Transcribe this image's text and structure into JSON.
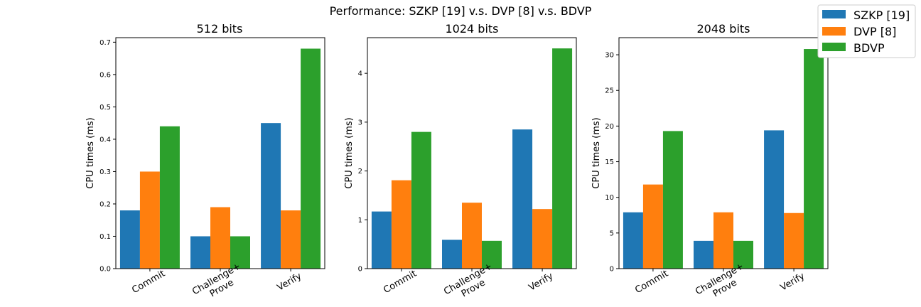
{
  "figure": {
    "title": "Performance: SZKP [19] v.s. DVP [8] v.s. BDVP"
  },
  "legend": {
    "placement": "top-right",
    "entries": [
      {
        "name": "SZKP [19]",
        "color": "#1f77b4"
      },
      {
        "name": "DVP [8]",
        "color": "#ff7f0e"
      },
      {
        "name": "BDVP",
        "color": "#2ca02c"
      }
    ]
  },
  "chart_data": [
    {
      "type": "bar",
      "title": "512 bits",
      "ylabel": "CPU times (ms)",
      "categories": [
        [
          "Commit"
        ],
        [
          "Challenge+",
          "Prove"
        ],
        [
          "Verify"
        ]
      ],
      "ylim": [
        0,
        0.714
      ],
      "yticks": [
        0.0,
        0.1,
        0.2,
        0.3,
        0.4,
        0.5,
        0.6,
        0.7
      ],
      "ytick_labels": [
        "0.0",
        "0.1",
        "0.2",
        "0.3",
        "0.4",
        "0.5",
        "0.6",
        "0.7"
      ],
      "grid": false,
      "series": [
        {
          "name": "SZKP [19]",
          "values": [
            0.18,
            0.1,
            0.45
          ]
        },
        {
          "name": "DVP [8]",
          "values": [
            0.3,
            0.19,
            0.18
          ]
        },
        {
          "name": "BDVP",
          "values": [
            0.44,
            0.1,
            0.68
          ]
        }
      ]
    },
    {
      "type": "bar",
      "title": "1024 bits",
      "ylabel": "CPU times (ms)",
      "categories": [
        [
          "Commit"
        ],
        [
          "Challenge+",
          "Prove"
        ],
        [
          "Verify"
        ]
      ],
      "ylim": [
        0,
        4.73
      ],
      "yticks": [
        0,
        1,
        2,
        3,
        4
      ],
      "ytick_labels": [
        "0",
        "1",
        "2",
        "3",
        "4"
      ],
      "grid": false,
      "series": [
        {
          "name": "SZKP [19]",
          "values": [
            1.17,
            0.59,
            2.85
          ]
        },
        {
          "name": "DVP [8]",
          "values": [
            1.81,
            1.35,
            1.22
          ]
        },
        {
          "name": "BDVP",
          "values": [
            2.8,
            0.57,
            4.51
          ]
        }
      ]
    },
    {
      "type": "bar",
      "title": "2048 bits",
      "ylabel": "CPU times (ms)",
      "categories": [
        [
          "Commit"
        ],
        [
          "Challenge+",
          "Prove"
        ],
        [
          "Verify"
        ]
      ],
      "ylim": [
        0,
        32.4
      ],
      "yticks": [
        0,
        5,
        10,
        15,
        20,
        25,
        30
      ],
      "ytick_labels": [
        "0",
        "5",
        "10",
        "15",
        "20",
        "25",
        "30"
      ],
      "grid": false,
      "series": [
        {
          "name": "SZKP [19]",
          "values": [
            7.9,
            3.9,
            19.4
          ]
        },
        {
          "name": "DVP [8]",
          "values": [
            11.8,
            7.9,
            7.8
          ]
        },
        {
          "name": "BDVP",
          "values": [
            19.3,
            3.9,
            30.8
          ]
        }
      ]
    }
  ]
}
